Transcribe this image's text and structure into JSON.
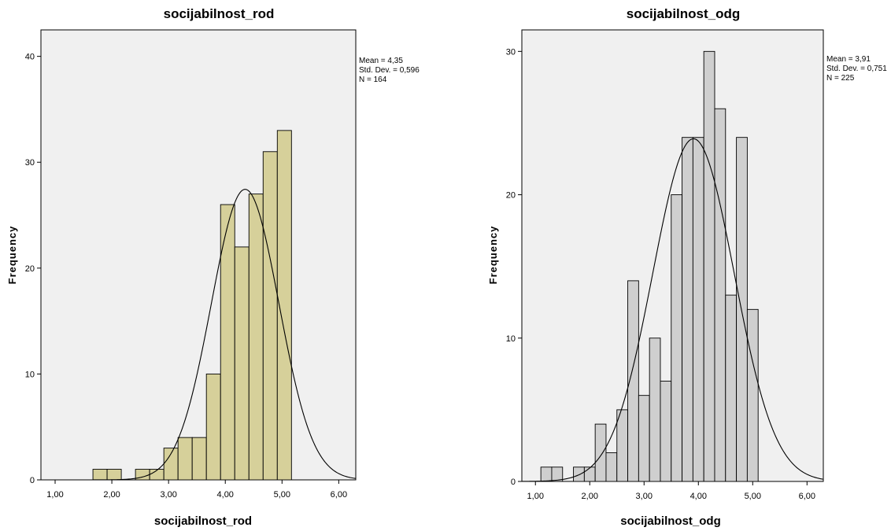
{
  "chart_data": [
    {
      "type": "bar",
      "title": "socijabilnost_rod",
      "xlabel": "socijabilnost_rod",
      "ylabel": "Frequency",
      "bar_color": "#d6d09a",
      "plot_bg": "#f0f0f0",
      "xlim": [
        0.75,
        6.3
      ],
      "ylim": [
        0,
        42.5
      ],
      "x_ticks": [
        {
          "value": 1,
          "label": "1,00"
        },
        {
          "value": 2,
          "label": "2,00"
        },
        {
          "value": 3,
          "label": "3,00"
        },
        {
          "value": 4,
          "label": "4,00"
        },
        {
          "value": 5,
          "label": "5,00"
        },
        {
          "value": 6,
          "label": "6,00"
        }
      ],
      "y_ticks": [
        {
          "value": 0,
          "label": "0"
        },
        {
          "value": 10,
          "label": "10"
        },
        {
          "value": 20,
          "label": "20"
        },
        {
          "value": 30,
          "label": "30"
        },
        {
          "value": 40,
          "label": "40"
        }
      ],
      "bins": [
        {
          "x0": 1.6667,
          "x1": 1.9167,
          "count": 1
        },
        {
          "x0": 1.9167,
          "x1": 2.1667,
          "count": 1
        },
        {
          "x0": 2.4167,
          "x1": 2.6667,
          "count": 1
        },
        {
          "x0": 2.6667,
          "x1": 2.9167,
          "count": 1
        },
        {
          "x0": 2.9167,
          "x1": 3.1667,
          "count": 3
        },
        {
          "x0": 3.1667,
          "x1": 3.4167,
          "count": 4
        },
        {
          "x0": 3.4167,
          "x1": 3.6667,
          "count": 4
        },
        {
          "x0": 3.6667,
          "x1": 3.9167,
          "count": 10
        },
        {
          "x0": 3.9167,
          "x1": 4.1667,
          "count": 26
        },
        {
          "x0": 4.1667,
          "x1": 4.4167,
          "count": 22
        },
        {
          "x0": 4.4167,
          "x1": 4.6667,
          "count": 27
        },
        {
          "x0": 4.6667,
          "x1": 4.9167,
          "count": 31
        },
        {
          "x0": 4.9167,
          "x1": 5.1667,
          "count": 33
        }
      ],
      "normal_curve": {
        "mean": 4.35,
        "sd": 0.596,
        "n": 164,
        "bin_width": 0.25
      },
      "stats": [
        "Mean = 4,35",
        "Std. Dev. = 0,596",
        "N = 164"
      ]
    },
    {
      "type": "bar",
      "title": "socijabilnost_odg",
      "xlabel": "socijabilnost_odg",
      "ylabel": "Frequency",
      "bar_color": "#cfcfcf",
      "plot_bg": "#f0f0f0",
      "xlim": [
        0.75,
        6.3
      ],
      "ylim": [
        0,
        31.5
      ],
      "x_ticks": [
        {
          "value": 1,
          "label": "1,00"
        },
        {
          "value": 2,
          "label": "2,00"
        },
        {
          "value": 3,
          "label": "3,00"
        },
        {
          "value": 4,
          "label": "4,00"
        },
        {
          "value": 5,
          "label": "5,00"
        },
        {
          "value": 6,
          "label": "6,00"
        }
      ],
      "y_ticks": [
        {
          "value": 0,
          "label": "0"
        },
        {
          "value": 10,
          "label": "10"
        },
        {
          "value": 20,
          "label": "20"
        },
        {
          "value": 30,
          "label": "30"
        }
      ],
      "bins": [
        {
          "x0": 1.1,
          "x1": 1.3,
          "count": 1
        },
        {
          "x0": 1.3,
          "x1": 1.5,
          "count": 1
        },
        {
          "x0": 1.7,
          "x1": 1.9,
          "count": 1
        },
        {
          "x0": 1.9,
          "x1": 2.1,
          "count": 1
        },
        {
          "x0": 2.1,
          "x1": 2.3,
          "count": 4
        },
        {
          "x0": 2.3,
          "x1": 2.5,
          "count": 2
        },
        {
          "x0": 2.5,
          "x1": 2.7,
          "count": 5
        },
        {
          "x0": 2.7,
          "x1": 2.9,
          "count": 14
        },
        {
          "x0": 2.9,
          "x1": 3.1,
          "count": 6
        },
        {
          "x0": 3.1,
          "x1": 3.3,
          "count": 10
        },
        {
          "x0": 3.3,
          "x1": 3.5,
          "count": 7
        },
        {
          "x0": 3.5,
          "x1": 3.7,
          "count": 20
        },
        {
          "x0": 3.7,
          "x1": 3.9,
          "count": 24
        },
        {
          "x0": 3.9,
          "x1": 4.1,
          "count": 24
        },
        {
          "x0": 4.1,
          "x1": 4.3,
          "count": 30
        },
        {
          "x0": 4.3,
          "x1": 4.5,
          "count": 26
        },
        {
          "x0": 4.5,
          "x1": 4.7,
          "count": 13
        },
        {
          "x0": 4.7,
          "x1": 4.9,
          "count": 24
        },
        {
          "x0": 4.9,
          "x1": 5.1,
          "count": 12
        }
      ],
      "normal_curve": {
        "mean": 3.91,
        "sd": 0.751,
        "n": 225,
        "bin_width": 0.2
      },
      "stats": [
        "Mean = 3,91",
        "Std. Dev. = 0,751",
        "N = 225"
      ]
    }
  ]
}
